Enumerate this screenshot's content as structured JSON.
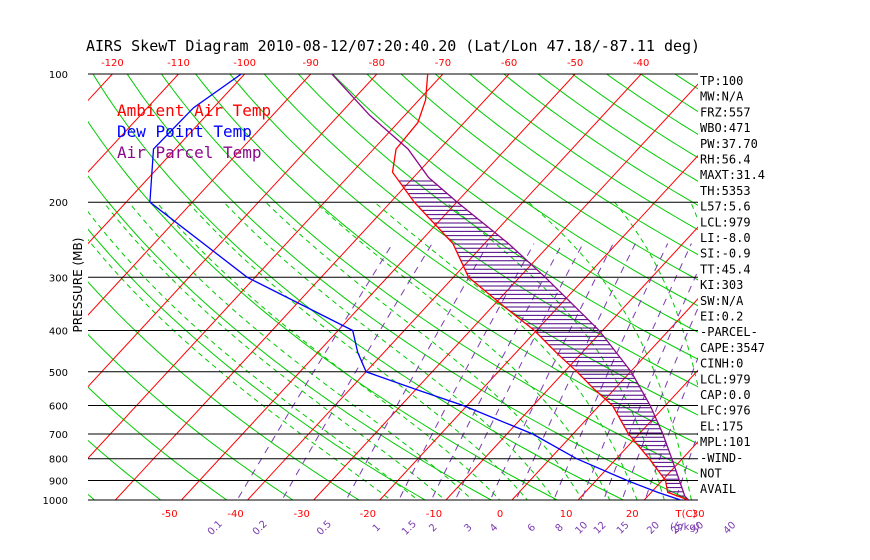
{
  "chart_data": {
    "type": "skewt",
    "title": "AIRS SkewT Diagram 2010-08-12/07:20:40.20 (Lat/Lon 47.18/-87.11 deg)",
    "ylabel": "PRESSURE (MB)",
    "xunit": "T(C)",
    "mixing_unit": "(g/kg)",
    "pressure_range": [
      1000,
      100
    ],
    "pressure_ticks": [
      100,
      200,
      300,
      400,
      500,
      600,
      700,
      800,
      900,
      1000
    ],
    "top_temp_ticks": [
      -120,
      -110,
      -100,
      -90,
      -80,
      -70,
      -60,
      -50,
      -40
    ],
    "bottom_temp_ticks": [
      -50,
      -40,
      -30,
      -20,
      -10,
      0,
      10,
      20,
      30
    ],
    "mixing_ratio_ticks": [
      "0.1",
      "0.2",
      "0.5",
      "1",
      "1.5",
      "2",
      "3",
      "4",
      "6",
      "8",
      "10",
      "12",
      "15",
      "20",
      "25",
      "30",
      "40"
    ],
    "legend": [
      {
        "label": "Ambient Air Temp",
        "color": "#ff0000"
      },
      {
        "label": "Dew Point Temp",
        "color": "#0000ff"
      },
      {
        "label": "Air Parcel Temp",
        "color": "#8b0a8b"
      }
    ],
    "series": [
      {
        "name": "Ambient Air Temp",
        "color": "#ff0000",
        "points": [
          {
            "p": 1000,
            "t": 26.7
          },
          {
            "p": 960,
            "t": 22.5
          },
          {
            "p": 900,
            "t": 20.5
          },
          {
            "p": 800,
            "t": 15.0
          },
          {
            "p": 700,
            "t": 8.4
          },
          {
            "p": 600,
            "t": 2.0
          },
          {
            "p": 550,
            "t": -3.0
          },
          {
            "p": 500,
            "t": -8.1
          },
          {
            "p": 450,
            "t": -14.0
          },
          {
            "p": 400,
            "t": -20.3
          },
          {
            "p": 350,
            "t": -28.5
          },
          {
            "p": 300,
            "t": -37.7
          },
          {
            "p": 250,
            "t": -44.8
          },
          {
            "p": 200,
            "t": -56.4
          },
          {
            "p": 170,
            "t": -63.9
          },
          {
            "p": 150,
            "t": -66.6
          },
          {
            "p": 130,
            "t": -67.0
          },
          {
            "p": 115,
            "t": -69.0
          },
          {
            "p": 100,
            "t": -72.3
          }
        ]
      },
      {
        "name": "Dew Point Temp",
        "color": "#0000ff",
        "points": [
          {
            "p": 1000,
            "t": 25.5
          },
          {
            "p": 960,
            "t": 21.0
          },
          {
            "p": 900,
            "t": 14.7
          },
          {
            "p": 800,
            "t": 4.0
          },
          {
            "p": 700,
            "t": -6.1
          },
          {
            "p": 600,
            "t": -20.6
          },
          {
            "p": 550,
            "t": -30.0
          },
          {
            "p": 500,
            "t": -40.0
          },
          {
            "p": 450,
            "t": -44.0
          },
          {
            "p": 400,
            "t": -47.8
          },
          {
            "p": 300,
            "t": -71.2
          },
          {
            "p": 200,
            "t": -96.4
          },
          {
            "p": 150,
            "t": -103.3
          },
          {
            "p": 120,
            "t": -103.0
          },
          {
            "p": 100,
            "t": -100.5
          }
        ]
      },
      {
        "name": "Air Parcel Temp",
        "color": "#8b0a8b",
        "points": [
          {
            "p": 1000,
            "t": 26.7
          },
          {
            "p": 979,
            "t": 25.6
          },
          {
            "p": 900,
            "t": 22.6
          },
          {
            "p": 800,
            "t": 18.4
          },
          {
            "p": 700,
            "t": 13.6
          },
          {
            "p": 600,
            "t": 7.7
          },
          {
            "p": 500,
            "t": 0.1
          },
          {
            "p": 400,
            "t": -10.5
          },
          {
            "p": 300,
            "t": -26.1
          },
          {
            "p": 250,
            "t": -36.4
          },
          {
            "p": 200,
            "t": -49.9
          },
          {
            "p": 175,
            "t": -57.7
          },
          {
            "p": 150,
            "t": -64.8
          },
          {
            "p": 125,
            "t": -75.3
          },
          {
            "p": 100,
            "t": -86.8
          }
        ]
      }
    ],
    "indices": [
      "TP:100",
      "MW:N/A",
      "FRZ:557",
      "WBO:471",
      "PW:37.70",
      "RH:56.4",
      "MAXT:31.4",
      "TH:5353",
      "L57:5.6",
      "LCL:979",
      "LI:-8.0",
      "SI:-0.9",
      "TT:45.4",
      "KI:303",
      "SW:N/A",
      "EI:0.2",
      "-PARCEL-",
      "CAPE:3547",
      "CINH:0",
      "LCL:979",
      "CAP:0.0",
      "LFC:976",
      "EL:175",
      "MPL:101",
      "-WIND-",
      "NOT",
      "AVAIL"
    ],
    "colors": {
      "isotherm": "#ff0000",
      "dry_adiabat": "#00cc00",
      "moist_adiabat": "#00cc00",
      "mixing_ratio": "#7a3ab0",
      "isobar": "#000000",
      "parcel_fill": "#4b0082"
    }
  }
}
